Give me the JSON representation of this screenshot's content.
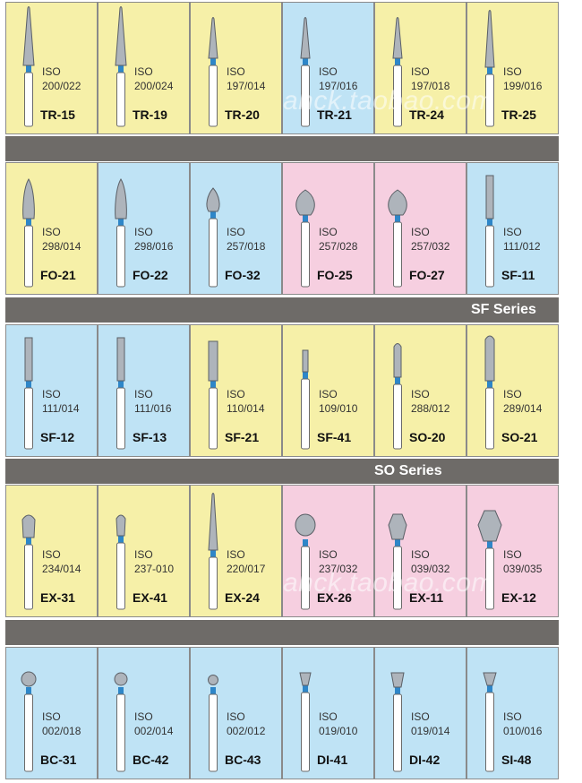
{
  "colors": {
    "yellow": "#f6f0a8",
    "blue": "#bfe3f5",
    "pink": "#f6cfe0",
    "band": "#6e6b68",
    "bur_head": "#aeb4bb",
    "bur_ring": "#2e86c8"
  },
  "watermark": "ahck.taobao.com",
  "series_labels": {
    "sf": "SF Series",
    "so": "SO Series"
  },
  "rows": [
    {
      "cells": [
        {
          "iso_word": "ISO",
          "iso_num": "200/022",
          "code": "TR-15",
          "bg": "yellow",
          "shape": "taper"
        },
        {
          "iso_word": "ISO",
          "iso_num": "200/024",
          "code": "TR-19",
          "bg": "yellow",
          "shape": "taper"
        },
        {
          "iso_word": "ISO",
          "iso_num": "197/014",
          "code": "TR-20",
          "bg": "yellow",
          "shape": "taper-thin"
        },
        {
          "iso_word": "ISO",
          "iso_num": "197/016",
          "code": "TR-21",
          "bg": "blue",
          "shape": "taper-thin"
        },
        {
          "iso_word": "ISO",
          "iso_num": "197/018",
          "code": "TR-24",
          "bg": "yellow",
          "shape": "taper-thin"
        },
        {
          "iso_word": "ISO",
          "iso_num": "199/016",
          "code": "TR-25",
          "bg": "yellow",
          "shape": "taper-long"
        }
      ]
    },
    {
      "cells": [
        {
          "iso_word": "ISO",
          "iso_num": "298/014",
          "code": "FO-21",
          "bg": "yellow",
          "shape": "flame-long"
        },
        {
          "iso_word": "ISO",
          "iso_num": "298/016",
          "code": "FO-22",
          "bg": "blue",
          "shape": "flame-long"
        },
        {
          "iso_word": "ISO",
          "iso_num": "257/018",
          "code": "FO-32",
          "bg": "blue",
          "shape": "flame-small"
        },
        {
          "iso_word": "ISO",
          "iso_num": "257/028",
          "code": "FO-25",
          "bg": "pink",
          "shape": "flame-wide"
        },
        {
          "iso_word": "ISO",
          "iso_num": "257/032",
          "code": "FO-27",
          "bg": "pink",
          "shape": "flame-wide"
        },
        {
          "iso_word": "ISO",
          "iso_num": "111/012",
          "code": "SF-11",
          "bg": "blue",
          "shape": "cyl-long"
        }
      ]
    },
    {
      "cells": [
        {
          "iso_word": "ISO",
          "iso_num": "111/014",
          "code": "SF-12",
          "bg": "blue",
          "shape": "cyl-long"
        },
        {
          "iso_word": "ISO",
          "iso_num": "111/016",
          "code": "SF-13",
          "bg": "blue",
          "shape": "cyl-long"
        },
        {
          "iso_word": "ISO",
          "iso_num": "110/014",
          "code": "SF-21",
          "bg": "yellow",
          "shape": "cyl-mid"
        },
        {
          "iso_word": "ISO",
          "iso_num": "109/010",
          "code": "SF-41",
          "bg": "yellow",
          "shape": "cyl-short"
        },
        {
          "iso_word": "ISO",
          "iso_num": "288/012",
          "code": "SO-20",
          "bg": "yellow",
          "shape": "round-end"
        },
        {
          "iso_word": "ISO",
          "iso_num": "289/014",
          "code": "SO-21",
          "bg": "yellow",
          "shape": "round-end-long"
        }
      ]
    },
    {
      "cells": [
        {
          "iso_word": "ISO",
          "iso_num": "234/014",
          "code": "EX-31",
          "bg": "yellow",
          "shape": "pear"
        },
        {
          "iso_word": "ISO",
          "iso_num": "237-010",
          "code": "EX-41",
          "bg": "yellow",
          "shape": "pear-small"
        },
        {
          "iso_word": "ISO",
          "iso_num": "220/017",
          "code": "EX-24",
          "bg": "yellow",
          "shape": "taper-long"
        },
        {
          "iso_word": "ISO",
          "iso_num": "237/032",
          "code": "EX-26",
          "bg": "pink",
          "shape": "egg"
        },
        {
          "iso_word": "ISO",
          "iso_num": "039/032",
          "code": "EX-11",
          "bg": "pink",
          "shape": "barrel"
        },
        {
          "iso_word": "ISO",
          "iso_num": "039/035",
          "code": "EX-12",
          "bg": "pink",
          "shape": "barrel-big"
        }
      ]
    },
    {
      "cells": [
        {
          "iso_word": "ISO",
          "iso_num": "002/018",
          "code": "BC-31",
          "bg": "blue",
          "shape": "ball"
        },
        {
          "iso_word": "ISO",
          "iso_num": "002/014",
          "code": "BC-42",
          "bg": "blue",
          "shape": "ball-small"
        },
        {
          "iso_word": "ISO",
          "iso_num": "002/012",
          "code": "BC-43",
          "bg": "blue",
          "shape": "ball-tiny"
        },
        {
          "iso_word": "ISO",
          "iso_num": "019/010",
          "code": "DI-41",
          "bg": "blue",
          "shape": "invcone"
        },
        {
          "iso_word": "ISO",
          "iso_num": "019/014",
          "code": "DI-42",
          "bg": "blue",
          "shape": "invcone-wide"
        },
        {
          "iso_word": "ISO",
          "iso_num": "010/016",
          "code": "SI-48",
          "bg": "blue",
          "shape": "invcone-top"
        }
      ]
    }
  ]
}
